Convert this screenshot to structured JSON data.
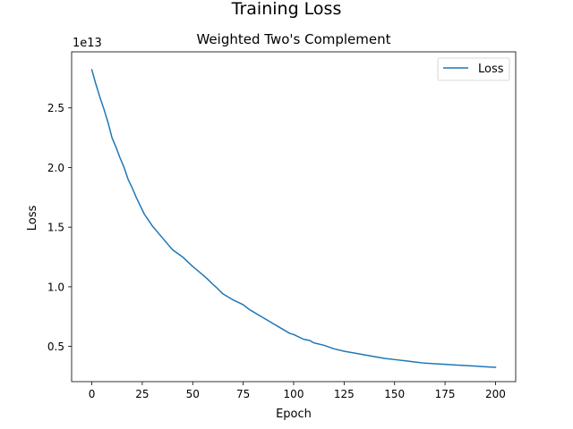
{
  "chart_data": {
    "type": "line",
    "suptitle": "Training Loss",
    "title": "Weighted Two's Complement",
    "xlabel": "Epoch",
    "ylabel": "Loss",
    "y_offset_label": "1e13",
    "y_scale": 10000000000000.0,
    "xlim": [
      -10,
      210
    ],
    "ylim": [
      2050000000000.0,
      29700000000000.0
    ],
    "x_ticks": [
      0,
      25,
      50,
      75,
      100,
      125,
      150,
      175,
      200
    ],
    "y_ticks": [
      0.5,
      1.0,
      1.5,
      2.0,
      2.5
    ],
    "y_tick_labels": [
      "0.5",
      "1.0",
      "1.5",
      "2.0",
      "2.5"
    ],
    "legend": {
      "position": "upper-right",
      "entries": [
        "Loss"
      ]
    },
    "grid": false,
    "series": [
      {
        "name": "Loss",
        "color": "#1f77b4",
        "x": [
          0,
          2,
          4,
          6,
          8,
          10,
          12,
          14,
          16,
          18,
          20,
          22,
          24,
          26,
          28,
          30,
          32,
          35,
          38,
          40,
          45,
          50,
          55,
          57,
          60,
          62,
          65,
          70,
          75,
          78,
          80,
          85,
          90,
          92,
          95,
          98,
          100,
          105,
          108,
          110,
          115,
          120,
          125,
          130,
          135,
          140,
          145,
          150,
          155,
          160,
          165,
          170,
          175,
          180,
          185,
          190,
          195,
          200
        ],
        "y": [
          28200000000000.0,
          27000000000000.0,
          25900000000000.0,
          24900000000000.0,
          23800000000000.0,
          22500000000000.0,
          21700000000000.0,
          20800000000000.0,
          20000000000000.0,
          19000000000000.0,
          18300000000000.0,
          17500000000000.0,
          16800000000000.0,
          16100000000000.0,
          15600000000000.0,
          15100000000000.0,
          14700000000000.0,
          14100000000000.0,
          13500000000000.0,
          13100000000000.0,
          12500000000000.0,
          11700000000000.0,
          11000000000000.0,
          10700000000000.0,
          10200000000000.0,
          9900000000000.0,
          9400000000000.0,
          8900000000000.0,
          8500000000000.0,
          8100000000000.0,
          7900000000000.0,
          7400000000000.0,
          6900000000000.0,
          6700000000000.0,
          6400000000000.0,
          6100000000000.0,
          6000000000000.0,
          5600000000000.0,
          5500000000000.0,
          5300000000000.0,
          5100000000000.0,
          4800000000000.0,
          4600000000000.0,
          4450000000000.0,
          4300000000000.0,
          4150000000000.0,
          4000000000000.0,
          3900000000000.0,
          3800000000000.0,
          3700000000000.0,
          3600000000000.0,
          3550000000000.0,
          3500000000000.0,
          3450000000000.0,
          3400000000000.0,
          3350000000000.0,
          3300000000000.0,
          3250000000000.0
        ]
      }
    ]
  }
}
